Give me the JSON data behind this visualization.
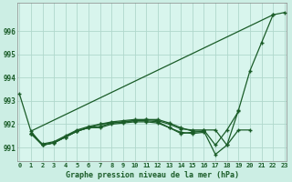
{
  "title": "Graphe pression niveau de la mer (hPa)",
  "bg_color": "#cceee4",
  "plot_bg": "#d8f5ed",
  "grid_color": "#b0d8cc",
  "line_color": "#1a5c28",
  "xlim": [
    -0.2,
    23.2
  ],
  "ylim": [
    990.4,
    997.2
  ],
  "yticks": [
    991,
    992,
    993,
    994,
    995,
    996
  ],
  "xticks": [
    0,
    1,
    2,
    3,
    4,
    5,
    6,
    7,
    8,
    9,
    10,
    11,
    12,
    13,
    14,
    15,
    16,
    17,
    18,
    19,
    20,
    21,
    22,
    23
  ],
  "series": [
    {
      "x": [
        0,
        1,
        2,
        3,
        4,
        5,
        6,
        7,
        8,
        9,
        10,
        11,
        12,
        13,
        14,
        15,
        16,
        17,
        18,
        19,
        20,
        21,
        22
      ],
      "y": [
        993.3,
        991.7,
        991.1,
        991.2,
        991.45,
        991.7,
        991.85,
        992.0,
        992.05,
        992.1,
        992.15,
        992.2,
        992.2,
        992.05,
        991.85,
        991.7,
        991.7,
        990.7,
        991.1,
        992.6,
        994.3,
        995.5,
        996.7
      ],
      "marker": true
    },
    {
      "x": [
        22,
        23
      ],
      "y": [
        996.7,
        996.8
      ],
      "marker": true
    },
    {
      "x": [
        1,
        22
      ],
      "y": [
        991.7,
        996.7
      ],
      "marker": false
    },
    {
      "x": [
        1,
        2,
        3,
        4,
        5,
        6,
        7,
        8,
        9,
        10,
        11,
        12,
        13,
        14,
        15,
        16
      ],
      "y": [
        991.6,
        991.1,
        991.2,
        991.45,
        991.7,
        991.85,
        991.9,
        992.05,
        992.1,
        992.15,
        992.15,
        992.1,
        991.85,
        991.6,
        991.65,
        991.7
      ],
      "marker": true
    },
    {
      "x": [
        1,
        2,
        3,
        4,
        5,
        6,
        7,
        8,
        9,
        10,
        11,
        12,
        13,
        14,
        15,
        16,
        17,
        18,
        19
      ],
      "y": [
        991.6,
        991.15,
        991.25,
        991.5,
        991.75,
        991.9,
        992.0,
        992.1,
        992.15,
        992.2,
        992.2,
        992.15,
        992.0,
        991.8,
        991.75,
        991.75,
        991.1,
        991.75,
        992.55
      ],
      "marker": true
    },
    {
      "x": [
        1,
        2,
        3,
        4,
        5,
        6,
        7,
        8,
        9,
        10,
        11,
        12,
        13,
        14,
        15,
        16
      ],
      "y": [
        991.6,
        991.1,
        991.2,
        991.45,
        991.7,
        991.85,
        991.85,
        992.0,
        992.05,
        992.1,
        992.1,
        992.05,
        991.85,
        991.65,
        991.6,
        991.65
      ],
      "marker": true
    },
    {
      "x": [
        16,
        17,
        18,
        19,
        20
      ],
      "y": [
        991.75,
        991.75,
        991.1,
        991.75,
        991.75
      ],
      "marker": true
    }
  ]
}
